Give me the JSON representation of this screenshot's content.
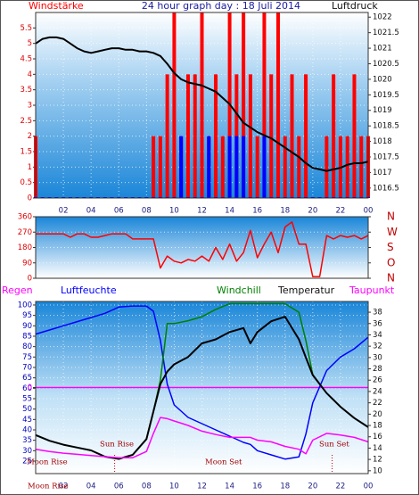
{
  "chart_data": [
    {
      "type": "line",
      "title": "24 hour graph day : 18 Juli 2014",
      "x": [
        0,
        0.5,
        1,
        1.5,
        2,
        2.5,
        3,
        3.5,
        4,
        4.5,
        5,
        5.5,
        6,
        6.5,
        7,
        7.5,
        8,
        8.5,
        9,
        9.5,
        10,
        10.5,
        11,
        11.5,
        12,
        12.5,
        13,
        13.5,
        14,
        14.5,
        15,
        15.5,
        16,
        16.5,
        17,
        17.5,
        18,
        18.5,
        19,
        19.5,
        20,
        20.5,
        21,
        21.5,
        22,
        22.5,
        23,
        23.5,
        24
      ],
      "xlim": [
        0,
        24
      ],
      "xticks": [
        {
          "value": 2,
          "label": "02"
        },
        {
          "value": 4,
          "label": "04"
        },
        {
          "value": 6,
          "label": "06"
        },
        {
          "value": 8,
          "label": "08"
        },
        10,
        12,
        14,
        16,
        18,
        20,
        22,
        {
          "value": 24,
          "label": "00"
        }
      ],
      "ylim": [
        0,
        6
      ],
      "yticks": [
        0,
        0.5,
        1,
        1.5,
        2,
        2.5,
        3,
        3.5,
        4,
        4.5,
        5,
        5.5
      ],
      "y2lim": [
        1016.18,
        1022.15
      ],
      "y2ticks": [
        1016.5,
        1017,
        1017.5,
        1018,
        1018.5,
        1019,
        1019.5,
        1020,
        1020.5,
        1021,
        1021.5,
        1022
      ],
      "grid": true,
      "series": [
        {
          "name": "Windstärke",
          "kind": "bar",
          "color": "#ff0000",
          "values": [
            2,
            0,
            0,
            0,
            0,
            0,
            0,
            0,
            0,
            0,
            0,
            0,
            0,
            0,
            0,
            0,
            0,
            2,
            2,
            4,
            6,
            2,
            4,
            4,
            6,
            2,
            4,
            2,
            6,
            4,
            6,
            4,
            2,
            6,
            4,
            6,
            2,
            4,
            2,
            4,
            0,
            0,
            2,
            4,
            2,
            2,
            4,
            2,
            2
          ]
        },
        {
          "kind": "bar",
          "color": "#0000ff",
          "values": [
            0,
            0,
            0,
            0,
            0,
            0,
            0,
            0,
            0,
            0,
            0,
            0,
            0,
            0,
            0,
            0,
            0,
            0,
            0,
            0,
            0,
            2,
            0,
            0,
            0,
            2,
            0,
            0,
            2,
            2,
            2,
            0,
            0,
            2,
            0,
            0,
            0,
            0,
            0,
            0,
            0,
            0,
            0,
            0,
            0,
            0,
            0,
            0,
            0
          ]
        },
        {
          "name": "Luftdruck",
          "kind": "line",
          "axis": "y2",
          "color": "#000000",
          "values": [
            1021.15,
            1021.3,
            1021.35,
            1021.35,
            1021.3,
            1021.15,
            1021.0,
            1020.9,
            1020.85,
            1020.9,
            1020.95,
            1021.0,
            1021.0,
            1020.95,
            1020.95,
            1020.9,
            1020.9,
            1020.85,
            1020.75,
            1020.5,
            1020.2,
            1020.0,
            1019.9,
            1019.85,
            1019.8,
            1019.7,
            1019.6,
            1019.4,
            1019.2,
            1018.9,
            1018.6,
            1018.45,
            1018.3,
            1018.2,
            1018.1,
            1017.95,
            1017.8,
            1017.65,
            1017.5,
            1017.3,
            1017.15,
            1017.1,
            1017.05,
            1017.1,
            1017.15,
            1017.25,
            1017.3,
            1017.3,
            1017.35
          ]
        }
      ]
    },
    {
      "type": "line",
      "x": [
        0,
        0.5,
        1,
        1.5,
        2,
        2.5,
        3,
        3.5,
        4,
        4.5,
        5,
        5.5,
        6,
        6.5,
        7,
        7.5,
        8,
        8.5,
        9,
        9.5,
        10,
        10.5,
        11,
        11.5,
        12,
        12.5,
        13,
        13.5,
        14,
        14.5,
        15,
        15.5,
        16,
        16.5,
        17,
        17.5,
        18,
        18.5,
        19,
        19.5,
        20,
        20.5,
        21,
        21.5,
        22,
        22.5,
        23,
        23.5,
        24
      ],
      "xlim": [
        0,
        24
      ],
      "ylim": [
        0,
        360
      ],
      "yticks": [
        0,
        90,
        180,
        270,
        360
      ],
      "y2lim": [
        0,
        360
      ],
      "y2ticks": [
        {
          "value": 0,
          "label": "N"
        },
        {
          "value": 90,
          "label": "O"
        },
        {
          "value": 180,
          "label": "S"
        },
        {
          "value": 270,
          "label": "W"
        },
        {
          "value": 360,
          "label": "N"
        }
      ],
      "grid": true,
      "series": [
        {
          "kind": "line",
          "color": "#ff0000",
          "values": [
            260,
            260,
            260,
            260,
            260,
            240,
            260,
            260,
            240,
            240,
            250,
            260,
            260,
            260,
            230,
            230,
            230,
            230,
            60,
            130,
            100,
            90,
            110,
            100,
            130,
            100,
            180,
            110,
            200,
            100,
            150,
            280,
            120,
            200,
            270,
            150,
            300,
            330,
            200,
            200,
            10,
            10,
            250,
            230,
            250,
            240,
            250,
            230,
            250
          ]
        }
      ]
    },
    {
      "type": "line",
      "x": [
        0,
        1,
        2,
        3,
        4,
        5,
        6,
        7,
        8,
        8.5,
        9,
        9.5,
        10,
        11,
        12,
        13,
        14,
        15,
        15.5,
        16,
        17,
        18,
        19,
        19.5,
        20,
        21,
        22,
        23,
        24
      ],
      "xlim": [
        0,
        24
      ],
      "xticks": [
        {
          "value": 2,
          "label": "02"
        },
        {
          "value": 4,
          "label": "04"
        },
        {
          "value": 6,
          "label": "06"
        },
        {
          "value": 8,
          "label": "08"
        },
        10,
        12,
        14,
        16,
        18,
        20,
        22,
        {
          "value": 24,
          "label": "00"
        }
      ],
      "ylim": [
        19,
        101.7
      ],
      "yticks": [
        25,
        30,
        35,
        40,
        45,
        50,
        55,
        60,
        65,
        70,
        75,
        80,
        85,
        90,
        95,
        100
      ],
      "y2lim": [
        9.5,
        39.9
      ],
      "y2ticks": [
        10,
        12,
        14,
        16,
        18,
        20,
        22,
        24,
        26,
        28,
        30,
        32,
        34,
        36,
        38
      ],
      "y3lim": [
        -1,
        1
      ],
      "y3ticks": [
        0
      ],
      "grid": true,
      "series": [
        {
          "name": "Regen",
          "kind": "line",
          "axis": "y3",
          "color": "#ff00ff",
          "x": [
            0,
            24
          ],
          "values": [
            0,
            0
          ]
        },
        {
          "name": "Luftfeuchte",
          "kind": "line",
          "color": "#0000ff",
          "values": [
            86,
            88,
            90,
            92,
            94,
            96,
            99,
            99.5,
            99.5,
            97,
            83,
            62,
            52,
            46,
            43,
            40,
            37,
            34,
            33,
            30,
            28,
            26,
            27,
            38,
            53,
            68.5,
            75,
            79,
            84.5
          ]
        },
        {
          "name": "Windchill",
          "kind": "line",
          "axis": "y2",
          "color": "#008000",
          "values": [
            16.3,
            15.3,
            14.6,
            14.1,
            13.6,
            12.5,
            12.1,
            12.8,
            15.6,
            20.5,
            26,
            36,
            36,
            36.5,
            37.2,
            38.5,
            39.5,
            39.5,
            39.5,
            39.5,
            39.5,
            39.5,
            38,
            33,
            27,
            23.7,
            21.3,
            19.3,
            17.7
          ]
        },
        {
          "name": "Temperatur",
          "kind": "line",
          "axis": "y2",
          "color": "#000000",
          "values": [
            16.3,
            15.3,
            14.6,
            14.1,
            13.6,
            12.5,
            12.1,
            12.8,
            15.6,
            20.5,
            25.3,
            27.5,
            28.8,
            30.1,
            32.5,
            33.2,
            34.5,
            35.2,
            32.5,
            34.5,
            36.4,
            37.2,
            33.2,
            30,
            26.9,
            23.7,
            21.3,
            19.3,
            17.7
          ]
        },
        {
          "name": "Taupunkt",
          "kind": "line",
          "axis": "y2",
          "color": "#ff00ff",
          "values": [
            13.8,
            13.4,
            13.1,
            12.9,
            12.7,
            12.5,
            12.3,
            12.3,
            13.4,
            16.6,
            19.4,
            19.2,
            18.8,
            18,
            17,
            16.4,
            15.9,
            15.9,
            15.9,
            15.4,
            15.1,
            14.3,
            13.8,
            13,
            15.4,
            16.6,
            16.3,
            15.9,
            15.1
          ]
        }
      ],
      "annotations": [
        {
          "text": "Moon Rise"
        },
        {
          "text": "Sun Rise",
          "x": 5.7
        },
        {
          "text": "Moon Set"
        },
        {
          "text": "Sun Set",
          "x": 21.4
        },
        {
          "text": "Moon Rise"
        }
      ]
    }
  ]
}
